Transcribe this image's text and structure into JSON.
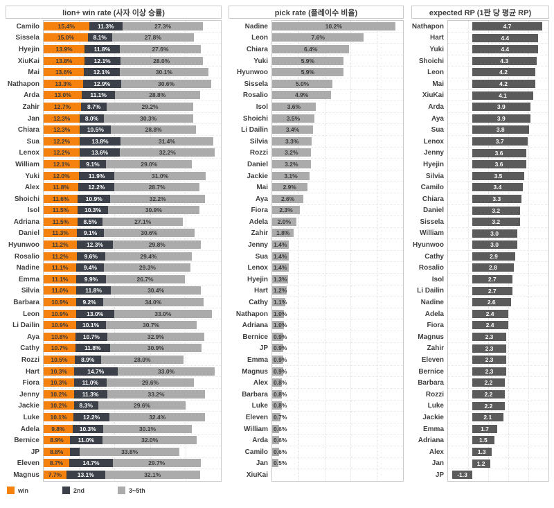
{
  "colors": {
    "win": "#f5820f",
    "second": "#3c4049",
    "rest": "#ababab",
    "pick_bar": "#ababab",
    "rp_bar": "#5b5b5b",
    "border": "#c9c9c9",
    "grid": "#dcdcdc",
    "text": "#3f3f3f"
  },
  "chart_data": [
    {
      "type": "bar",
      "orientation": "horizontal",
      "stacked": true,
      "title": "lion+ win rate (사자 이상 승률)",
      "xlim": [
        0,
        60
      ],
      "grid": "dotted-vertical",
      "legend_position": "bottom-left",
      "legend": [
        {
          "label": "win",
          "color": "#f5820f"
        },
        {
          "label": "2nd",
          "color": "#3c4049"
        },
        {
          "label": "3~5th",
          "color": "#ababab"
        }
      ],
      "rows": [
        [
          "Camilo",
          15.4,
          "15.4%",
          11.3,
          "11.3%",
          27.3,
          "27.3%"
        ],
        [
          "Sissela",
          15.0,
          "15.0%",
          8.1,
          "8.1%",
          27.8,
          "27.8%"
        ],
        [
          "Hyejin",
          13.9,
          "13.9%",
          11.8,
          "11.8%",
          27.6,
          "27.6%"
        ],
        [
          "XiuKai",
          13.8,
          "13.8%",
          12.1,
          "12.1%",
          28.0,
          "28.0%"
        ],
        [
          "Mai",
          13.6,
          "13.6%",
          12.1,
          "12.1%",
          30.1,
          "30.1%"
        ],
        [
          "Nathapon",
          13.3,
          "13.3%",
          12.9,
          "12.9%",
          30.6,
          "30.6%"
        ],
        [
          "Arda",
          13.0,
          "13.0%",
          11.1,
          "11.1%",
          28.8,
          "28.8%"
        ],
        [
          "Zahir",
          12.7,
          "12.7%",
          8.7,
          "8.7%",
          29.2,
          "29.2%"
        ],
        [
          "Jan",
          12.3,
          "12.3%",
          8.0,
          "8.0%",
          30.3,
          "30.3%"
        ],
        [
          "Chiara",
          12.3,
          "12.3%",
          10.5,
          "10.5%",
          28.8,
          "28.8%"
        ],
        [
          "Sua",
          12.2,
          "12.2%",
          13.8,
          "13.8%",
          31.4,
          "31.4%"
        ],
        [
          "Lenox",
          12.2,
          "12.2%",
          13.6,
          "13.6%",
          32.2,
          "32.2%"
        ],
        [
          "William",
          12.1,
          "12.1%",
          9.1,
          "9.1%",
          29.0,
          "29.0%"
        ],
        [
          "Yuki",
          12.0,
          "12.0%",
          11.9,
          "11.9%",
          31.0,
          "31.0%"
        ],
        [
          "Alex",
          11.8,
          "11.8%",
          12.2,
          "12.2%",
          28.7,
          "28.7%"
        ],
        [
          "Shoichi",
          11.6,
          "11.6%",
          10.9,
          "10.9%",
          32.2,
          "32.2%"
        ],
        [
          "Isol",
          11.5,
          "11.5%",
          10.3,
          "10.3%",
          30.9,
          "30.9%"
        ],
        [
          "Adriana",
          11.5,
          "11.5%",
          8.5,
          "8.5%",
          27.1,
          "27.1%"
        ],
        [
          "Daniel",
          11.3,
          "11.3%",
          9.1,
          "9.1%",
          30.6,
          "30.6%"
        ],
        [
          "Hyunwoo",
          11.2,
          "11.2%",
          12.3,
          "12.3%",
          29.8,
          "29.8%"
        ],
        [
          "Rosalio",
          11.2,
          "11.2%",
          9.6,
          "9.6%",
          29.4,
          "29.4%"
        ],
        [
          "Nadine",
          11.1,
          "11.1%",
          9.4,
          "9.4%",
          29.3,
          "29.3%"
        ],
        [
          "Emma",
          11.1,
          "11.1%",
          9.9,
          "9.9%",
          26.7,
          "26.7%"
        ],
        [
          "Silvia",
          11.0,
          "11.0%",
          11.8,
          "11.8%",
          30.4,
          "30.4%"
        ],
        [
          "Barbara",
          10.9,
          "10.9%",
          9.2,
          "9.2%",
          34.0,
          "34.0%"
        ],
        [
          "Leon",
          10.9,
          "10.9%",
          13.0,
          "13.0%",
          33.0,
          "33.0%"
        ],
        [
          "Li Dailin",
          10.9,
          "10.9%",
          10.1,
          "10.1%",
          30.7,
          "30.7%"
        ],
        [
          "Aya",
          10.8,
          "10.8%",
          10.7,
          "10.7%",
          32.9,
          "32.9%"
        ],
        [
          "Cathy",
          10.7,
          "10.7%",
          11.8,
          "11.8%",
          30.9,
          "30.9%"
        ],
        [
          "Rozzi",
          10.5,
          "10.5%",
          8.9,
          "8.9%",
          28.0,
          "28.0%"
        ],
        [
          "Hart",
          10.3,
          "10.3%",
          14.7,
          "14.7%",
          33.0,
          "33.0%"
        ],
        [
          "Fiora",
          10.3,
          "10.3%",
          11.0,
          "11.0%",
          29.6,
          "29.6%"
        ],
        [
          "Jenny",
          10.2,
          "10.2%",
          11.3,
          "11.3%",
          33.2,
          "33.2%"
        ],
        [
          "Jackie",
          10.2,
          "10.2%",
          8.3,
          "8.3%",
          29.6,
          "29.6%"
        ],
        [
          "Luke",
          10.1,
          "10.1%",
          12.2,
          "12.2%",
          32.4,
          "32.4%"
        ],
        [
          "Adela",
          9.8,
          "9.8%",
          10.3,
          "10.3%",
          30.1,
          "30.1%"
        ],
        [
          "Bernice",
          8.9,
          "8.9%",
          11.0,
          "11.0%",
          32.0,
          "32.0%"
        ],
        [
          "JP",
          8.8,
          "8.8%",
          3.4,
          "",
          33.8,
          "33.8%"
        ],
        [
          "Eleven",
          8.7,
          "8.7%",
          14.7,
          "14.7%",
          29.7,
          "29.7%"
        ],
        [
          "Magnus",
          7.7,
          "7.7%",
          13.1,
          "13.1%",
          32.1,
          "32.1%"
        ]
      ]
    },
    {
      "type": "bar",
      "orientation": "horizontal",
      "stacked": false,
      "title": "pick rate (플레이수 비율)",
      "xlim": [
        0,
        10.85
      ],
      "grid": "dotted-vertical",
      "bar_color": "#ababab",
      "rows": [
        [
          "Nadine",
          10.2,
          "10.2%"
        ],
        [
          "Leon",
          7.6,
          "7.6%"
        ],
        [
          "Chiara",
          6.4,
          "6.4%"
        ],
        [
          "Yuki",
          5.9,
          "5.9%"
        ],
        [
          "Hyunwoo",
          5.9,
          "5.9%"
        ],
        [
          "Sissela",
          5.0,
          "5.0%"
        ],
        [
          "Rosalio",
          4.9,
          "4.9%"
        ],
        [
          "Isol",
          3.6,
          "3.6%"
        ],
        [
          "Shoichi",
          3.5,
          "3.5%"
        ],
        [
          "Li Dailin",
          3.4,
          "3.4%"
        ],
        [
          "Silvia",
          3.3,
          "3.3%"
        ],
        [
          "Rozzi",
          3.2,
          "3.2%"
        ],
        [
          "Daniel",
          3.2,
          "3.2%"
        ],
        [
          "Jackie",
          3.1,
          "3.1%"
        ],
        [
          "Mai",
          2.9,
          "2.9%"
        ],
        [
          "Aya",
          2.6,
          "2.6%"
        ],
        [
          "Fiora",
          2.3,
          "2.3%"
        ],
        [
          "Adela",
          2.0,
          "2.0%"
        ],
        [
          "Zahir",
          1.8,
          "1.8%"
        ],
        [
          "Jenny",
          1.4,
          "1.4%"
        ],
        [
          "Sua",
          1.4,
          "1.4%"
        ],
        [
          "Lenox",
          1.4,
          "1.4%"
        ],
        [
          "Hyejin",
          1.3,
          "1.3%"
        ],
        [
          "Hart",
          1.2,
          "1.2%"
        ],
        [
          "Cathy",
          1.1,
          "1.1%"
        ],
        [
          "Nathapon",
          1.0,
          "1.0%"
        ],
        [
          "Adriana",
          1.0,
          "1.0%"
        ],
        [
          "Bernice",
          0.9,
          "0.9%"
        ],
        [
          "JP",
          0.9,
          "0.9%"
        ],
        [
          "Emma",
          0.9,
          "0.9%"
        ],
        [
          "Magnus",
          0.9,
          "0.9%"
        ],
        [
          "Alex",
          0.8,
          "0.8%"
        ],
        [
          "Barbara",
          0.8,
          "0.8%"
        ],
        [
          "Luke",
          0.8,
          "0.8%"
        ],
        [
          "Eleven",
          0.7,
          "0.7%"
        ],
        [
          "William",
          0.6,
          "0.6%"
        ],
        [
          "Arda",
          0.6,
          "0.6%"
        ],
        [
          "Camilo",
          0.6,
          "0.6%"
        ],
        [
          "Jan",
          0.5,
          "0.5%"
        ],
        [
          "XiuKai",
          0,
          ""
        ]
      ]
    },
    {
      "type": "bar",
      "orientation": "horizontal",
      "stacked": false,
      "title": "expected RP (1판 당 평균 RP)",
      "xlim": [
        -1.6,
        5.1
      ],
      "grid": "dotted-vertical",
      "bar_color": "#5b5b5b",
      "rows": [
        [
          "Nathapon",
          4.7,
          "4.7"
        ],
        [
          "Hart",
          4.4,
          "4.4"
        ],
        [
          "Yuki",
          4.4,
          "4.4"
        ],
        [
          "Shoichi",
          4.3,
          "4.3"
        ],
        [
          "Leon",
          4.2,
          "4.2"
        ],
        [
          "Mai",
          4.2,
          "4.2"
        ],
        [
          "XiuKai",
          4.1,
          "4.1"
        ],
        [
          "Arda",
          3.9,
          "3.9"
        ],
        [
          "Aya",
          3.9,
          "3.9"
        ],
        [
          "Sua",
          3.8,
          "3.8"
        ],
        [
          "Lenox",
          3.7,
          "3.7"
        ],
        [
          "Jenny",
          3.6,
          "3.6"
        ],
        [
          "Hyejin",
          3.6,
          "3.6"
        ],
        [
          "Silvia",
          3.5,
          "3.5"
        ],
        [
          "Camilo",
          3.4,
          "3.4"
        ],
        [
          "Chiara",
          3.3,
          "3.3"
        ],
        [
          "Daniel",
          3.2,
          "3.2"
        ],
        [
          "Sissela",
          3.2,
          "3.2"
        ],
        [
          "William",
          3.0,
          "3.0"
        ],
        [
          "Hyunwoo",
          3.0,
          "3.0"
        ],
        [
          "Cathy",
          2.9,
          "2.9"
        ],
        [
          "Rosalio",
          2.8,
          "2.8"
        ],
        [
          "Isol",
          2.7,
          "2.7"
        ],
        [
          "Li Dailin",
          2.7,
          "2.7"
        ],
        [
          "Nadine",
          2.6,
          "2.6"
        ],
        [
          "Adela",
          2.4,
          "2.4"
        ],
        [
          "Fiora",
          2.4,
          "2.4"
        ],
        [
          "Magnus",
          2.3,
          "2.3"
        ],
        [
          "Zahir",
          2.3,
          "2.3"
        ],
        [
          "Eleven",
          2.3,
          "2.3"
        ],
        [
          "Bernice",
          2.3,
          "2.3"
        ],
        [
          "Barbara",
          2.2,
          "2.2"
        ],
        [
          "Rozzi",
          2.2,
          "2.2"
        ],
        [
          "Luke",
          2.2,
          "2.2"
        ],
        [
          "Jackie",
          2.1,
          "2.1"
        ],
        [
          "Emma",
          1.7,
          "1.7"
        ],
        [
          "Adriana",
          1.5,
          "1.5"
        ],
        [
          "Alex",
          1.3,
          "1.3"
        ],
        [
          "Jan",
          1.2,
          "1.2"
        ],
        [
          "JP",
          -1.3,
          "-1.3"
        ]
      ]
    }
  ]
}
